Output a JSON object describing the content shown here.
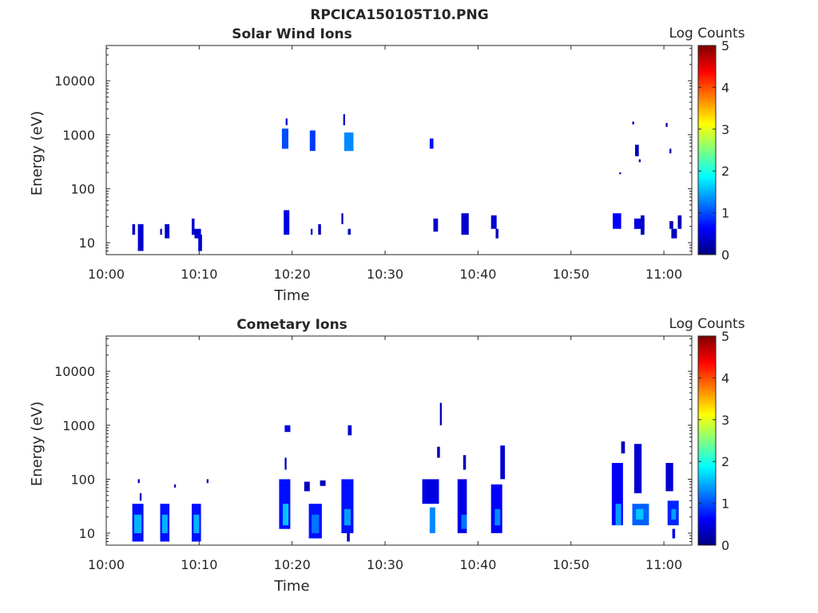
{
  "figure_title": "RPCICA150105T10.PNG",
  "colormap": [
    "#00007f",
    "#0000ff",
    "#007fff",
    "#00ffff",
    "#7fff7f",
    "#ffff00",
    "#ff7f00",
    "#ff0000",
    "#7f0000"
  ],
  "chart_data": [
    {
      "type": "heatmap",
      "title": "Solar Wind Ions",
      "xlabel": "Time",
      "ylabel": "Energy (eV)",
      "x_range_minutes": [
        0,
        63
      ],
      "x_ticks": [
        "10:00",
        "10:10",
        "10:20",
        "10:30",
        "10:40",
        "10:50",
        "11:00"
      ],
      "y_scale": "log",
      "y_range": [
        6,
        45000
      ],
      "y_ticks": [
        {
          "value": 10,
          "label": "10"
        },
        {
          "value": 100,
          "label": "100"
        },
        {
          "value": 1000,
          "label": "1000"
        },
        {
          "value": 10000,
          "label": "10000"
        }
      ],
      "colorbar": {
        "label": "Log Counts",
        "min": 0,
        "max": 5,
        "ticks": [
          "0",
          "1",
          "2",
          "3",
          "4",
          "5"
        ]
      },
      "cells_note": "each cell: [start minute after 10:00, end minute, energy low eV, energy high eV, log counts]",
      "cells": [
        [
          2.8,
          3.1,
          14,
          22,
          0.3
        ],
        [
          3.4,
          4.0,
          7,
          22,
          0.4
        ],
        [
          5.8,
          6.0,
          14,
          18,
          0.3
        ],
        [
          6.3,
          6.8,
          12,
          22,
          0.4
        ],
        [
          9.2,
          9.5,
          14,
          28,
          0.4
        ],
        [
          9.5,
          10.2,
          12,
          18,
          0.4
        ],
        [
          9.9,
          10.3,
          7,
          14,
          0.4
        ],
        [
          18.9,
          19.6,
          550,
          1300,
          1.0
        ],
        [
          19.3,
          19.5,
          1500,
          2000,
          0.4
        ],
        [
          19.1,
          19.7,
          14,
          40,
          0.5
        ],
        [
          21.9,
          22.5,
          500,
          1200,
          0.9
        ],
        [
          22.0,
          22.2,
          14,
          18,
          0.3
        ],
        [
          22.8,
          23.1,
          14,
          22,
          0.3
        ],
        [
          25.6,
          26.6,
          500,
          1100,
          1.3
        ],
        [
          25.5,
          25.7,
          1500,
          2400,
          0.4
        ],
        [
          25.3,
          25.5,
          22,
          35,
          0.3
        ],
        [
          26.0,
          26.3,
          14,
          18,
          0.3
        ],
        [
          34.8,
          35.2,
          550,
          850,
          0.7
        ],
        [
          35.2,
          35.7,
          16,
          28,
          0.4
        ],
        [
          38.2,
          39.0,
          14,
          35,
          0.4
        ],
        [
          41.4,
          42.0,
          18,
          32,
          0.4
        ],
        [
          41.9,
          42.2,
          12,
          18,
          0.3
        ],
        [
          54.5,
          55.4,
          18,
          35,
          0.6
        ],
        [
          55.2,
          55.4,
          185,
          200,
          0.3
        ],
        [
          56.6,
          56.8,
          1550,
          1750,
          0.4
        ],
        [
          56.9,
          57.3,
          400,
          650,
          0.3
        ],
        [
          57.3,
          57.5,
          310,
          350,
          0.3
        ],
        [
          56.8,
          57.9,
          18,
          28,
          0.5
        ],
        [
          57.5,
          57.9,
          14,
          32,
          0.3
        ],
        [
          60.2,
          60.4,
          1400,
          1650,
          0.3
        ],
        [
          60.6,
          60.8,
          450,
          550,
          0.3
        ],
        [
          60.6,
          61.0,
          18,
          25,
          0.3
        ],
        [
          60.8,
          61.4,
          12,
          18,
          0.3
        ],
        [
          61.5,
          61.9,
          18,
          32,
          0.3
        ]
      ]
    },
    {
      "type": "heatmap",
      "title": "Cometary Ions",
      "xlabel": "Time",
      "ylabel": "Energy (eV)",
      "x_range_minutes": [
        0,
        63
      ],
      "x_ticks": [
        "10:00",
        "10:10",
        "10:20",
        "10:30",
        "10:40",
        "10:50",
        "11:00"
      ],
      "y_scale": "log",
      "y_range": [
        6,
        45000
      ],
      "y_ticks": [
        {
          "value": 10,
          "label": "10"
        },
        {
          "value": 100,
          "label": "100"
        },
        {
          "value": 1000,
          "label": "1000"
        },
        {
          "value": 10000,
          "label": "10000"
        }
      ],
      "colorbar": {
        "label": "Log Counts",
        "min": 0,
        "max": 5,
        "ticks": [
          "0",
          "1",
          "2",
          "3",
          "4",
          "5"
        ]
      },
      "cells_note": "each cell: [start minute after 10:00, end minute, energy low eV, energy high eV, log counts]",
      "cells": [
        [
          2.8,
          4.0,
          7,
          35,
          0.7
        ],
        [
          3.0,
          3.8,
          10,
          22,
          1.5
        ],
        [
          3.4,
          3.6,
          85,
          100,
          0.3
        ],
        [
          3.6,
          3.8,
          40,
          55,
          0.3
        ],
        [
          5.8,
          6.8,
          7,
          35,
          0.7
        ],
        [
          6.0,
          6.6,
          10,
          22,
          1.5
        ],
        [
          7.3,
          7.5,
          70,
          80,
          0.3
        ],
        [
          9.2,
          10.2,
          7,
          35,
          0.7
        ],
        [
          9.4,
          10.0,
          10,
          22,
          1.5
        ],
        [
          10.8,
          11.0,
          85,
          100,
          0.3
        ],
        [
          18.6,
          19.8,
          12,
          100,
          0.7
        ],
        [
          19.0,
          19.6,
          14,
          35,
          1.6
        ],
        [
          19.2,
          19.4,
          150,
          250,
          0.3
        ],
        [
          19.2,
          19.8,
          750,
          1000,
          0.5
        ],
        [
          21.8,
          23.2,
          8,
          35,
          0.7
        ],
        [
          22.1,
          22.9,
          10,
          22,
          1.2
        ],
        [
          21.3,
          21.9,
          60,
          90,
          0.3
        ],
        [
          23.0,
          23.6,
          75,
          95,
          0.3
        ],
        [
          25.3,
          26.6,
          10,
          100,
          0.7
        ],
        [
          25.6,
          26.3,
          14,
          28,
          1.4
        ],
        [
          26.0,
          26.4,
          650,
          1000,
          0.4
        ],
        [
          25.9,
          26.2,
          7,
          10,
          0.3
        ],
        [
          34.0,
          35.8,
          35,
          100,
          0.5
        ],
        [
          34.8,
          35.4,
          10,
          30,
          1.3
        ],
        [
          35.6,
          35.9,
          250,
          400,
          0.3
        ],
        [
          35.9,
          36.1,
          1000,
          2600,
          0.3
        ],
        [
          37.8,
          38.8,
          10,
          100,
          0.5
        ],
        [
          38.2,
          38.8,
          12,
          22,
          1.2
        ],
        [
          38.4,
          38.7,
          150,
          280,
          0.3
        ],
        [
          41.4,
          42.6,
          10,
          80,
          0.6
        ],
        [
          41.8,
          42.4,
          14,
          28,
          1.3
        ],
        [
          42.4,
          42.9,
          100,
          420,
          0.4
        ],
        [
          54.4,
          55.6,
          14,
          200,
          0.6
        ],
        [
          54.8,
          55.4,
          14,
          35,
          1.4
        ],
        [
          55.4,
          55.8,
          300,
          500,
          0.3
        ],
        [
          56.6,
          58.4,
          14,
          35,
          1.1
        ],
        [
          56.8,
          57.6,
          55,
          450,
          0.4
        ],
        [
          57.0,
          57.8,
          18,
          28,
          1.6
        ],
        [
          60.2,
          61.0,
          60,
          200,
          0.4
        ],
        [
          60.4,
          61.6,
          14,
          40,
          0.8
        ],
        [
          60.8,
          61.3,
          18,
          28,
          1.4
        ],
        [
          60.9,
          61.2,
          8,
          12,
          0.5
        ]
      ]
    }
  ]
}
